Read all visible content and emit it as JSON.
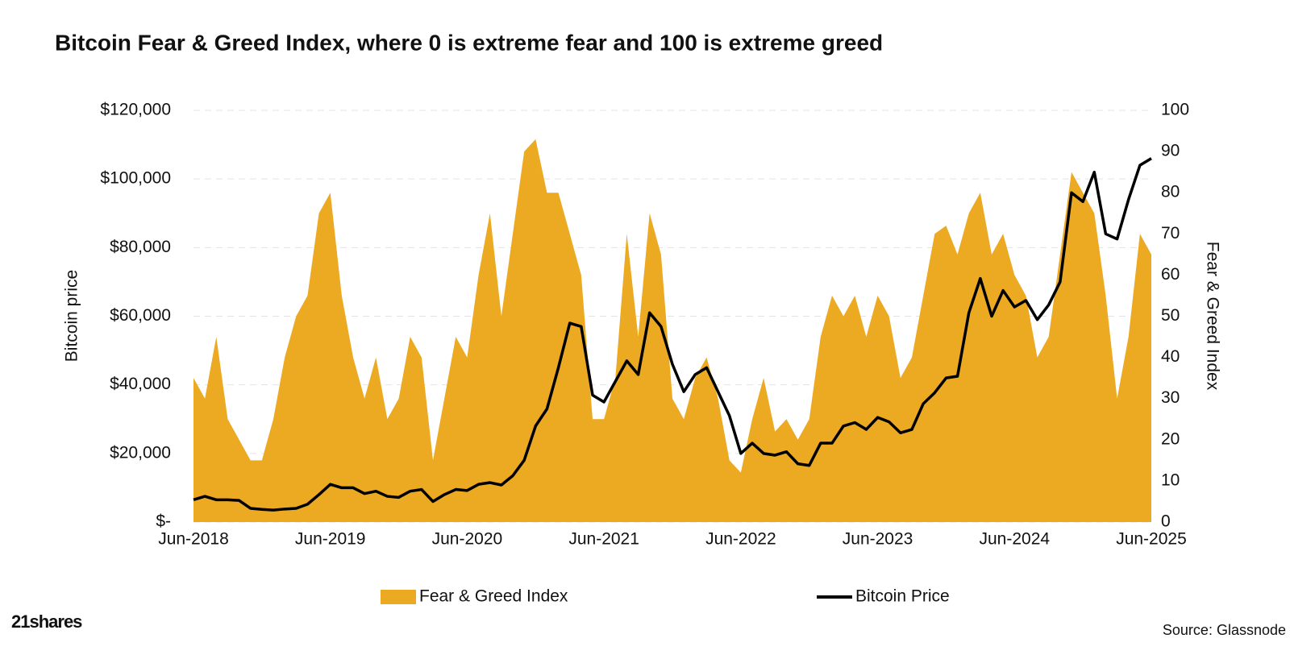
{
  "chart_data": {
    "type": "line",
    "title": "Bitcoin Fear & Greed Index, where 0 is extreme fear and 100 is extreme greed",
    "y_label": "Bitcoin price",
    "y2_label": "Fear & Greed Index",
    "x": [
      "Jun-2018",
      "Jul-2018",
      "Aug-2018",
      "Sep-2018",
      "Oct-2018",
      "Nov-2018",
      "Dec-2018",
      "Jan-2019",
      "Feb-2019",
      "Mar-2019",
      "Apr-2019",
      "May-2019",
      "Jun-2019",
      "Jul-2019",
      "Aug-2019",
      "Sep-2019",
      "Oct-2019",
      "Nov-2019",
      "Dec-2019",
      "Jan-2020",
      "Feb-2020",
      "Mar-2020",
      "Apr-2020",
      "May-2020",
      "Jun-2020",
      "Jul-2020",
      "Aug-2020",
      "Sep-2020",
      "Oct-2020",
      "Nov-2020",
      "Dec-2020",
      "Jan-2021",
      "Feb-2021",
      "Mar-2021",
      "Apr-2021",
      "May-2021",
      "Jun-2021",
      "Jul-2021",
      "Aug-2021",
      "Sep-2021",
      "Oct-2021",
      "Nov-2021",
      "Dec-2021",
      "Jan-2022",
      "Feb-2022",
      "Mar-2022",
      "Apr-2022",
      "May-2022",
      "Jun-2022",
      "Jul-2022",
      "Aug-2022",
      "Sep-2022",
      "Oct-2022",
      "Nov-2022",
      "Dec-2022",
      "Jan-2023",
      "Feb-2023",
      "Mar-2023",
      "Apr-2023",
      "May-2023",
      "Jun-2023",
      "Jul-2023",
      "Aug-2023",
      "Sep-2023",
      "Oct-2023",
      "Nov-2023",
      "Dec-2023",
      "Jan-2024",
      "Feb-2024",
      "Mar-2024",
      "Apr-2024",
      "May-2024",
      "Jun-2024",
      "Jul-2024",
      "Aug-2024",
      "Sep-2024",
      "Oct-2024",
      "Nov-2024",
      "Dec-2024",
      "Jan-2025",
      "Feb-2025",
      "Mar-2025",
      "Apr-2025",
      "May-2025",
      "Jun-2025"
    ],
    "xticks": [
      "Jun-2018",
      "Jun-2019",
      "Jun-2020",
      "Jun-2021",
      "Jun-2022",
      "Jun-2023",
      "Jun-2024",
      "Jun-2025"
    ],
    "series": [
      {
        "name": "Fear & Greed Index",
        "color": "#ECA922",
        "type": "area",
        "axis": "y2",
        "values": [
          35,
          30,
          45,
          25,
          20,
          15,
          15,
          25,
          40,
          50,
          55,
          75,
          80,
          55,
          40,
          30,
          40,
          25,
          30,
          45,
          40,
          15,
          30,
          45,
          40,
          60,
          75,
          50,
          70,
          90,
          93,
          80,
          80,
          70,
          60,
          25,
          25,
          35,
          70,
          45,
          75,
          65,
          30,
          25,
          35,
          40,
          30,
          15,
          12,
          25,
          35,
          22,
          25,
          20,
          25,
          45,
          55,
          50,
          55,
          45,
          55,
          50,
          35,
          40,
          55,
          70,
          72,
          65,
          75,
          80,
          65,
          70,
          60,
          55,
          40,
          45,
          65,
          85,
          80,
          75,
          55,
          30,
          45,
          70,
          65
        ]
      },
      {
        "name": "Bitcoin Price",
        "color": "#000000",
        "type": "line",
        "values": [
          6500,
          7500,
          6500,
          6500,
          6300,
          4000,
          3700,
          3500,
          3800,
          4000,
          5200,
          8000,
          11000,
          10000,
          10000,
          8300,
          9000,
          7500,
          7200,
          9000,
          9500,
          6000,
          8000,
          9500,
          9200,
          11000,
          11500,
          10800,
          13500,
          18000,
          28000,
          33000,
          45000,
          58000,
          57000,
          37000,
          35000,
          41000,
          47000,
          43000,
          61000,
          57000,
          46000,
          38000,
          43000,
          45000,
          38000,
          31000,
          20000,
          23000,
          20000,
          19500,
          20500,
          17000,
          16500,
          23000,
          23000,
          28000,
          29000,
          27000,
          30500,
          29200,
          26000,
          27000,
          34500,
          37700,
          42000,
          42500,
          61000,
          71000,
          60000,
          67500,
          62700,
          64600,
          59000,
          63300,
          70000,
          96000,
          93400,
          102000,
          84000,
          82500,
          94000,
          104000,
          106000
        ]
      }
    ],
    "ylim": [
      0,
      120000
    ],
    "yticks": [
      {
        "value": 0,
        "label": "$-"
      },
      {
        "value": 20000,
        "label": "$20,000"
      },
      {
        "value": 40000,
        "label": "$40,000"
      },
      {
        "value": 60000,
        "label": "$60,000"
      },
      {
        "value": 80000,
        "label": "$80,000"
      },
      {
        "value": 100000,
        "label": "$100,000"
      },
      {
        "value": 120000,
        "label": "$120,000"
      }
    ],
    "y2lim": [
      0,
      100
    ],
    "y2ticks": [
      0,
      10,
      20,
      30,
      40,
      50,
      60,
      70,
      80,
      90,
      100
    ],
    "grid": true,
    "legend": "bottom",
    "logo": "21shares",
    "source": "Source: Glassnode"
  }
}
